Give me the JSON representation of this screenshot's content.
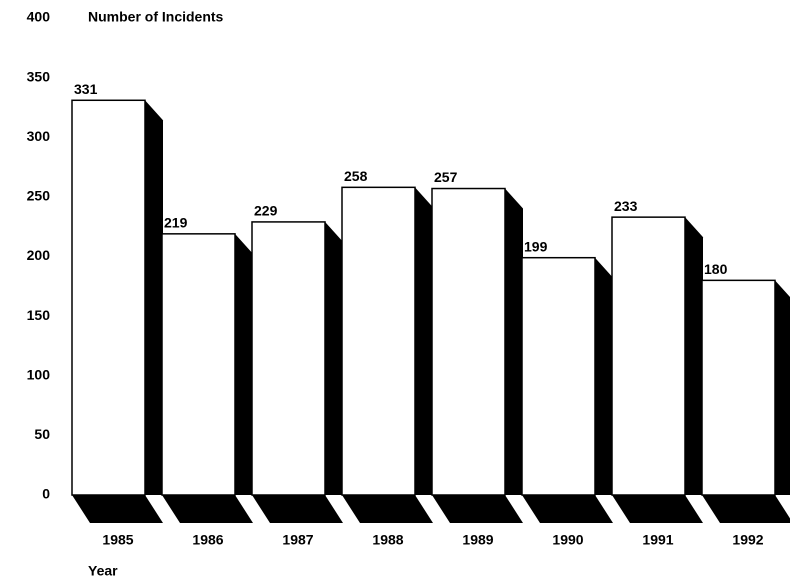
{
  "chart_data": {
    "type": "bar",
    "title": "Number of Incidents",
    "x_label": "Year",
    "categories": [
      "1985",
      "1986",
      "1987",
      "1988",
      "1989",
      "1990",
      "1991",
      "1992"
    ],
    "values": [
      331,
      219,
      229,
      258,
      257,
      199,
      233,
      180
    ],
    "color": "#ffffff",
    "ylim": [
      0,
      400
    ],
    "yticks": [
      0,
      50,
      100,
      150,
      200,
      250,
      300,
      350,
      400
    ],
    "grid": false
  }
}
